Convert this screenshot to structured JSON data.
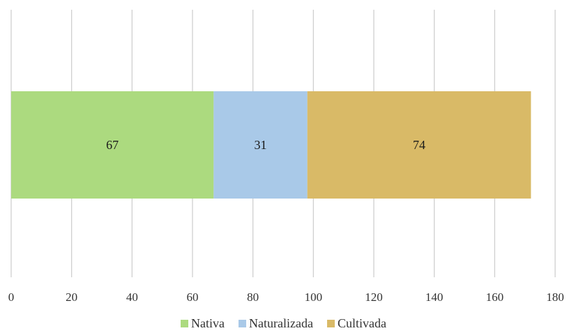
{
  "chart_data": {
    "type": "bar",
    "orientation": "horizontal",
    "stacked": true,
    "categories": [
      ""
    ],
    "series": [
      {
        "name": "Nativa",
        "values": [
          67
        ],
        "color": "#ACDA7F"
      },
      {
        "name": "Naturalizada",
        "values": [
          31
        ],
        "color": "#A9C9E8"
      },
      {
        "name": "Cultivada",
        "values": [
          74
        ],
        "color": "#D9BA67"
      }
    ],
    "title": "",
    "xlabel": "",
    "ylabel": "",
    "xlim": [
      0,
      180
    ],
    "x_ticks": [
      "0",
      "20",
      "40",
      "60",
      "80",
      "100",
      "120",
      "140",
      "160",
      "180"
    ],
    "grid": "vertical",
    "grid_color": "#D0D0D0",
    "legend_position": "bottom"
  }
}
